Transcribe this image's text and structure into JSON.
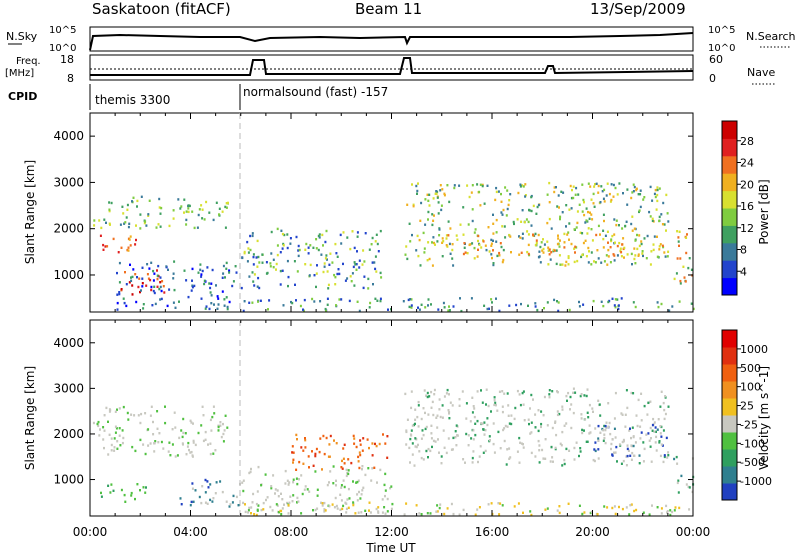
{
  "header": {
    "station": "Saskatoon (fitACF)",
    "beam": "Beam 11",
    "date": "13/Sep/2009"
  },
  "strips": {
    "nsky_label": "N.Sky",
    "nsky_ticks": [
      "10^5",
      "10^0"
    ],
    "nsearch_label": "N.Search",
    "nsearch_ticks": [
      "10^5",
      "10^0"
    ],
    "freq_label_1": "Freq.",
    "freq_label_2": "[MHz]",
    "freq_ticks": [
      "18",
      "8"
    ],
    "nave_label": "Nave",
    "nave_ticks": [
      "60",
      "0"
    ],
    "cpid_label": "CPID",
    "cpid_1": "themis 3300",
    "cpid_2": "normalsound (fast) -157"
  },
  "chart_data": [
    {
      "type": "heatmap",
      "title": "",
      "ylabel": "Slant Range [km]",
      "xlabel": "",
      "y_ticks": [
        "1000",
        "2000",
        "3000",
        "4000"
      ],
      "ylim": [
        200,
        4500
      ],
      "x_ticks": [
        "00:00",
        "04:00",
        "08:00",
        "12:00",
        "16:00",
        "20:00",
        "00:00"
      ],
      "xlim_hours": [
        0,
        24
      ],
      "colorbar": {
        "label": "Power [dB]",
        "ticks": [
          "4",
          "8",
          "12",
          "16",
          "20",
          "24",
          "28"
        ],
        "colors": [
          "#0000ff",
          "#2244cc",
          "#3a7a9a",
          "#3fa060",
          "#7fcc40",
          "#d8e030",
          "#f0b020",
          "#f07020",
          "#e02020",
          "#cc0000"
        ]
      }
    },
    {
      "type": "heatmap",
      "title": "",
      "ylabel": "Slant Range [km]",
      "xlabel": "Time UT",
      "y_ticks": [
        "1000",
        "2000",
        "3000",
        "4000"
      ],
      "ylim": [
        200,
        4500
      ],
      "x_ticks": [
        "00:00",
        "04:00",
        "08:00",
        "12:00",
        "16:00",
        "20:00",
        "00:00"
      ],
      "xlim_hours": [
        0,
        24
      ],
      "colorbar": {
        "label": "Velocity [m s^-1]",
        "ticks": [
          "1000",
          "500",
          "100",
          "25",
          "-25",
          "-100",
          "-500",
          "-1000"
        ],
        "colors": [
          "#2040c0",
          "#2f7f8f",
          "#2f9f5f",
          "#50c040",
          "#c8c8c0",
          "#f0c020",
          "#f09020",
          "#f06010",
          "#e03010",
          "#e00000"
        ]
      }
    }
  ]
}
